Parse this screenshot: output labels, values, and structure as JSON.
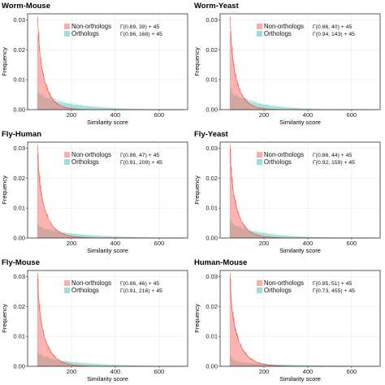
{
  "colors": {
    "non_orthologs": "#f8766d",
    "orthologs": "#5ec8c0",
    "panel_border": "#333333"
  },
  "chart_data": [
    {
      "type": "area",
      "title": "Worm-Mouse",
      "xlabel": "Similarity score",
      "ylabel": "Frequency",
      "xlim": [
        0,
        730
      ],
      "ylim": [
        0,
        0.032
      ],
      "x_ticks": [
        "200",
        "400",
        "600"
      ],
      "y_ticks": [
        "0.00",
        "0.01",
        "0.02",
        "0.03"
      ],
      "grid": true,
      "legend_position": "top-right",
      "x_offset": 45,
      "series": [
        {
          "name": "Non-orthologs",
          "fit": "Γ(0.89, 39) + 45",
          "shape": 0.89,
          "scale": 39,
          "peak": 0.029
        },
        {
          "name": "Orthologs",
          "fit": "Γ(0.96, 168) + 45",
          "shape": 0.96,
          "scale": 168,
          "peak": 0.0058
        }
      ]
    },
    {
      "type": "area",
      "title": "Worm-Yeast",
      "xlabel": "Similarity score",
      "ylabel": "Frequency",
      "xlim": [
        0,
        730
      ],
      "ylim": [
        0,
        0.032
      ],
      "x_ticks": [
        "200",
        "400",
        "600"
      ],
      "y_ticks": [
        "0.00",
        "0.01",
        "0.02",
        "0.03"
      ],
      "grid": true,
      "legend_position": "top-right",
      "x_offset": 45,
      "series": [
        {
          "name": "Non-orthologs",
          "fit": "Γ(0.86, 40) + 45",
          "shape": 0.86,
          "scale": 40,
          "peak": 0.029
        },
        {
          "name": "Orthologs",
          "fit": "Γ(0.94, 143) + 45",
          "shape": 0.94,
          "scale": 143,
          "peak": 0.0068
        }
      ]
    },
    {
      "type": "area",
      "title": "Fly-Human",
      "xlabel": "Similarity score",
      "ylabel": "Frequency",
      "xlim": [
        0,
        730
      ],
      "ylim": [
        0,
        0.032
      ],
      "x_ticks": [
        "200",
        "400",
        "600"
      ],
      "y_ticks": [
        "0.00",
        "0.01",
        "0.02",
        "0.03"
      ],
      "grid": true,
      "legend_position": "top-right",
      "x_offset": 45,
      "series": [
        {
          "name": "Non-orthologs",
          "fit": "Γ(0.86, 47) + 45",
          "shape": 0.86,
          "scale": 47,
          "peak": 0.028
        },
        {
          "name": "Orthologs",
          "fit": "Γ(0.91, 209) + 45",
          "shape": 0.91,
          "scale": 209,
          "peak": 0.0048
        }
      ]
    },
    {
      "type": "area",
      "title": "Fly-Yeast",
      "xlabel": "Similarity score",
      "ylabel": "Frequency",
      "xlim": [
        0,
        730
      ],
      "ylim": [
        0,
        0.032
      ],
      "x_ticks": [
        "200",
        "400",
        "600"
      ],
      "y_ticks": [
        "0.00",
        "0.01",
        "0.02",
        "0.03"
      ],
      "grid": true,
      "legend_position": "top-right",
      "x_offset": 45,
      "series": [
        {
          "name": "Non-orthologs",
          "fit": "Γ(0.86, 44) + 45",
          "shape": 0.86,
          "scale": 44,
          "peak": 0.028
        },
        {
          "name": "Orthologs",
          "fit": "Γ(0.92, 159) + 45",
          "shape": 0.92,
          "scale": 159,
          "peak": 0.0062
        }
      ]
    },
    {
      "type": "area",
      "title": "Fly-Mouse",
      "xlabel": "Similarity score",
      "ylabel": "Frequency",
      "xlim": [
        0,
        730
      ],
      "ylim": [
        0,
        0.032
      ],
      "x_ticks": [
        "200",
        "400",
        "600"
      ],
      "y_ticks": [
        "0.00",
        "0.01",
        "0.02",
        "0.03"
      ],
      "grid": true,
      "legend_position": "top-right",
      "x_offset": 45,
      "series": [
        {
          "name": "Non-orthologs",
          "fit": "Γ(0.86, 46) + 45",
          "shape": 0.86,
          "scale": 46,
          "peak": 0.028
        },
        {
          "name": "Orthologs",
          "fit": "Γ(0.91, 216) + 45",
          "shape": 0.91,
          "scale": 216,
          "peak": 0.0046
        }
      ]
    },
    {
      "type": "area",
      "title": "Human-Mouse",
      "xlabel": "Similarity score",
      "ylabel": "Frequency",
      "xlim": [
        0,
        730
      ],
      "ylim": [
        0,
        0.032
      ],
      "x_ticks": [
        "200",
        "400",
        "600"
      ],
      "y_ticks": [
        "0.00",
        "0.01",
        "0.02",
        "0.03"
      ],
      "grid": true,
      "legend_position": "top-right",
      "x_offset": 45,
      "series": [
        {
          "name": "Non-orthologs",
          "fit": "Γ(0.85, 51) + 45",
          "shape": 0.85,
          "scale": 51,
          "peak": 0.028
        },
        {
          "name": "Orthologs",
          "fit": "Γ(0.73, 455) + 45",
          "shape": 0.73,
          "scale": 455,
          "peak": 0.0038
        }
      ]
    }
  ]
}
